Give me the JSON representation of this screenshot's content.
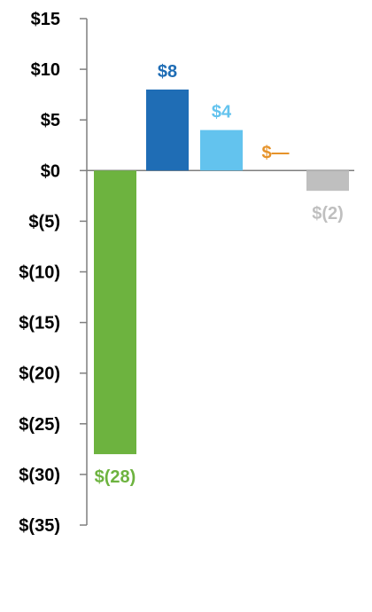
{
  "chart_data": {
    "type": "bar",
    "title": "",
    "xlabel": "",
    "ylabel": "",
    "ylim": [
      -35,
      15
    ],
    "y_ticks": [
      15,
      10,
      5,
      0,
      -5,
      -10,
      -15,
      -20,
      -25,
      -30,
      -35
    ],
    "y_tick_labels": [
      "$15",
      "$10",
      "$5",
      "$0",
      "$(5)",
      "$(10)",
      "$(15)",
      "$(20)",
      "$(25)",
      "$(30)",
      "$(35)"
    ],
    "grid": false,
    "legend": "none",
    "bars": [
      {
        "value": -28,
        "label": "$(28)",
        "color": "#6db33f",
        "label_color": "#6db33f"
      },
      {
        "value": 8,
        "label": "$8",
        "color": "#1f6db5",
        "label_color": "#1f6db5"
      },
      {
        "value": 4,
        "label": "$4",
        "color": "#63c3ee",
        "label_color": "#63c3ee"
      },
      {
        "value": 0,
        "label": "$—",
        "color": "#e6932a",
        "label_color": "#e6932a"
      },
      {
        "value": -2,
        "label": "$(2)",
        "color": "#bfbfbf",
        "label_color": "#bfbfbf"
      }
    ],
    "axis_color": "#7f7f7f"
  }
}
